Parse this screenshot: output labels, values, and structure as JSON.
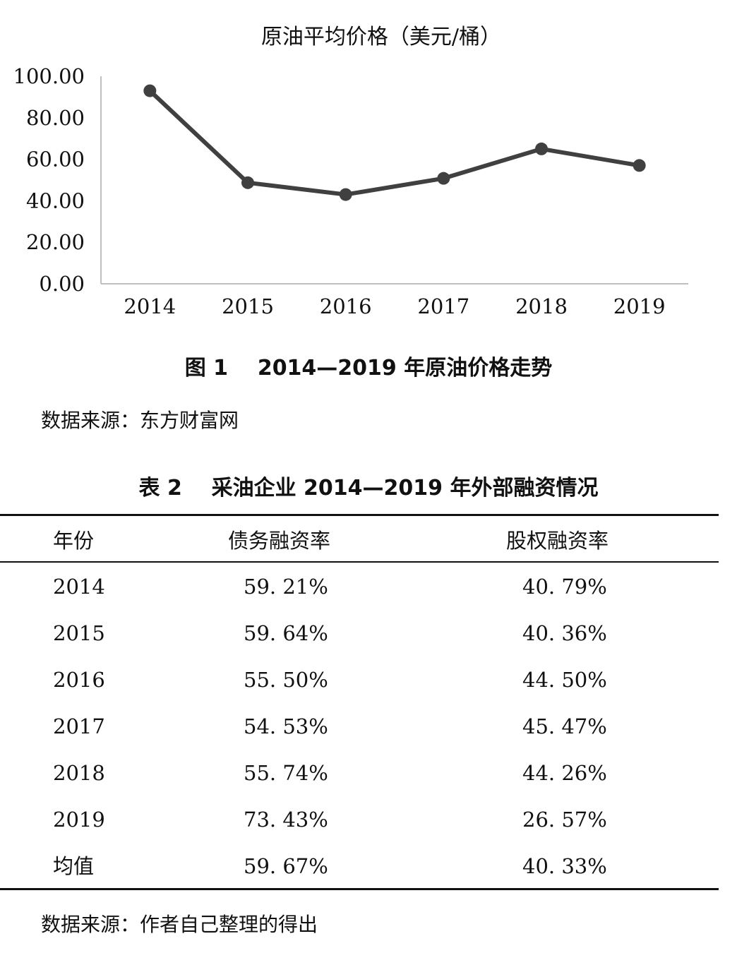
{
  "chart_data": {
    "type": "line",
    "title": "原油平均价格（美元/桶）",
    "categories": [
      "2014",
      "2015",
      "2016",
      "2017",
      "2018",
      "2019"
    ],
    "values": [
      93.0,
      48.7,
      43.0,
      50.8,
      65.0,
      57.0
    ],
    "ylim": [
      0,
      100
    ],
    "yticks": [
      "0.00",
      "20.00",
      "40.00",
      "60.00",
      "80.00",
      "100.00"
    ],
    "grid": false,
    "line_color": "#404040"
  },
  "figure_caption": "图 1    2014—2019 年原油价格走势",
  "figure_source": "数据来源：东方财富网",
  "table_caption": "表 2    采油企业 2014—2019 年外部融资情况",
  "table": {
    "headers": [
      "年份",
      "债务融资率",
      "股权融资率"
    ],
    "rows": [
      [
        "2014",
        "59. 21%",
        "40. 79%"
      ],
      [
        "2015",
        "59. 64%",
        "40. 36%"
      ],
      [
        "2016",
        "55. 50%",
        "44. 50%"
      ],
      [
        "2017",
        "54. 53%",
        "45. 47%"
      ],
      [
        "2018",
        "55. 74%",
        "44. 26%"
      ],
      [
        "2019",
        "73. 43%",
        "26. 57%"
      ],
      [
        "均值",
        "59. 67%",
        "40. 33%"
      ]
    ]
  },
  "table_source": "数据来源：作者自己整理的得出"
}
